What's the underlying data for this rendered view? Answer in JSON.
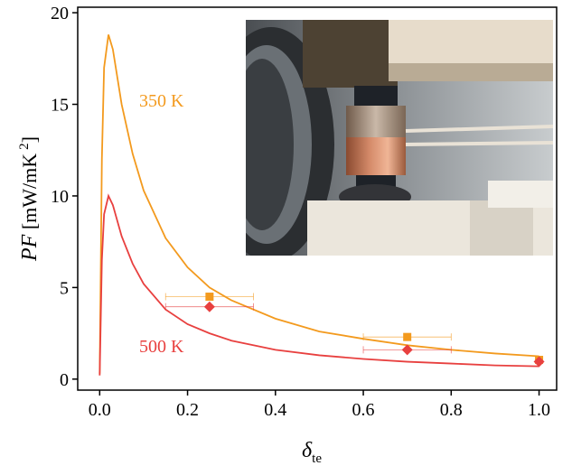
{
  "chart_data": {
    "type": "line",
    "xlabel_parts": [
      "δ",
      "te"
    ],
    "ylabel_parts": [
      "PF",
      " [mW/mK",
      "2",
      "]"
    ],
    "x": [
      0.0,
      0.005,
      0.01,
      0.02,
      0.03,
      0.05,
      0.075,
      0.1,
      0.15,
      0.2,
      0.25,
      0.3,
      0.4,
      0.5,
      0.6,
      0.7,
      0.8,
      0.9,
      1.0
    ],
    "series": [
      {
        "name": "350 K",
        "color": "#f39a1e",
        "values": [
          0.3,
          12,
          17,
          18.8,
          18,
          15,
          12.3,
          10.3,
          7.7,
          6.1,
          5.0,
          4.3,
          3.3,
          2.6,
          2.2,
          1.85,
          1.6,
          1.4,
          1.25
        ]
      },
      {
        "name": "500 K",
        "color": "#e8403f",
        "values": [
          0.2,
          6.5,
          9,
          10,
          9.5,
          7.8,
          6.3,
          5.2,
          3.8,
          3.0,
          2.5,
          2.1,
          1.6,
          1.3,
          1.1,
          0.95,
          0.85,
          0.75,
          0.7
        ]
      }
    ],
    "scatter_series": [
      {
        "color": "#f39a1e",
        "marker": "square",
        "x": [
          0.25,
          0.7,
          1.0
        ],
        "values": [
          4.5,
          2.3,
          1.05
        ],
        "xerr": [
          0.1,
          0.1,
          null
        ]
      },
      {
        "color": "#e8403f",
        "marker": "diamond",
        "x": [
          0.25,
          0.7,
          1.0
        ],
        "values": [
          3.95,
          1.6,
          0.95
        ],
        "xerr": [
          0.1,
          0.1,
          null
        ]
      }
    ],
    "xlim": [
      -0.05,
      1.04
    ],
    "ylim": [
      -0.6,
      20.3
    ],
    "xticks": [
      {
        "value": 0,
        "label": "0.0"
      },
      0.2,
      0.4,
      0.6,
      0.8,
      {
        "value": 1,
        "label": "1.0"
      }
    ],
    "yticks": [
      0,
      5,
      10,
      15,
      20
    ]
  }
}
